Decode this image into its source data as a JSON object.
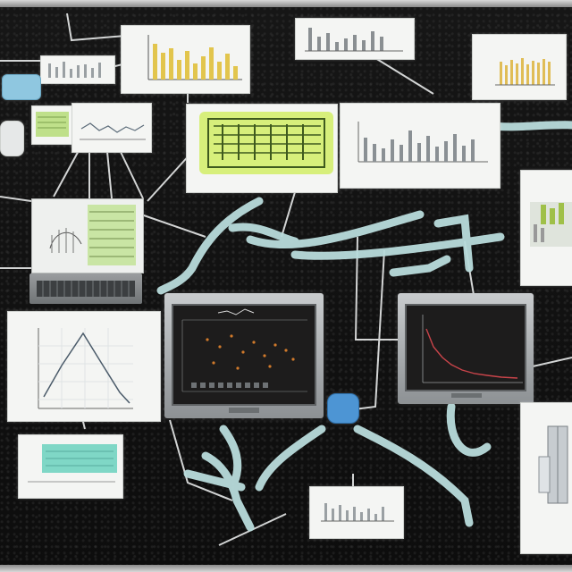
{
  "scene": {
    "background_color": "#0f0f10",
    "wire_color": "#b9dcdc",
    "line_color": "#e8eaea",
    "accent_yellow": "#e2d47a",
    "accent_lime": "#d7ef7b",
    "accent_teal": "#7fd7c6",
    "chart_red": "#c9444a"
  }
}
